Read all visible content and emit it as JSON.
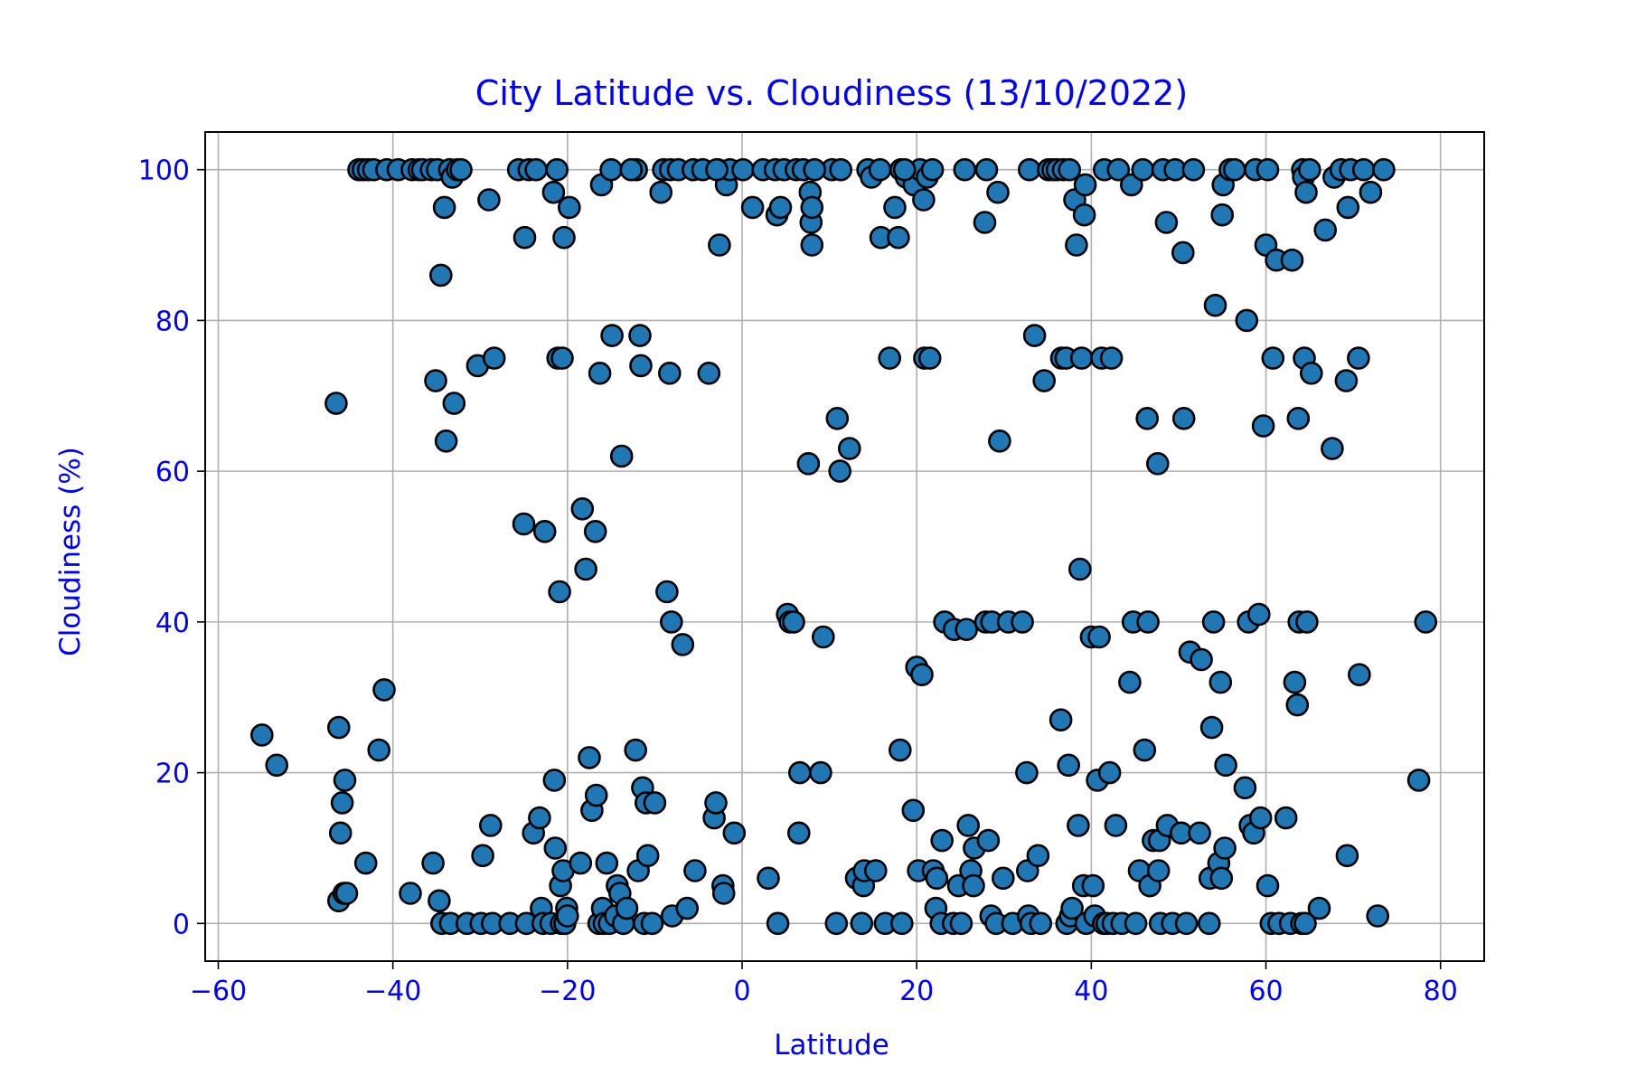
{
  "chart_data": {
    "type": "scatter",
    "title": "City Latitude vs. Cloudiness (13/10/2022)",
    "xlabel": "Latitude",
    "ylabel": "Cloudiness (%)",
    "xlim": [
      -61.5,
      85
    ],
    "ylim": [
      -5,
      105
    ],
    "xticks": [
      -60,
      -40,
      -20,
      0,
      20,
      40,
      60,
      80
    ],
    "yticks": [
      0,
      20,
      40,
      60,
      80,
      100
    ],
    "xtick_labels": [
      "−60",
      "−40",
      "−20",
      "0",
      "20",
      "40",
      "60",
      "80"
    ],
    "ytick_labels": [
      "0",
      "20",
      "40",
      "60",
      "80",
      "100"
    ],
    "grid": true,
    "legend": "none",
    "colors": {
      "text": "#0000ff",
      "marker_fill": "#1f77b4",
      "marker_edge": "#000000",
      "grid": "#b0b0b0",
      "axes": "#000000"
    },
    "points": [
      [
        -55,
        25
      ],
      [
        -53.3,
        21
      ],
      [
        -46.5,
        69
      ],
      [
        -46.2,
        26
      ],
      [
        -46,
        12
      ],
      [
        -46.2,
        3
      ],
      [
        -45.8,
        16
      ],
      [
        -45.5,
        19
      ],
      [
        -45.6,
        4
      ],
      [
        -45.3,
        4
      ],
      [
        -43.9,
        100
      ],
      [
        -43.4,
        100
      ],
      [
        -43.1,
        8
      ],
      [
        -42.8,
        100
      ],
      [
        -42.2,
        100
      ],
      [
        -41.6,
        23
      ],
      [
        -41,
        31
      ],
      [
        -40.7,
        100
      ],
      [
        -39.4,
        100
      ],
      [
        -38,
        4
      ],
      [
        -37.8,
        100
      ],
      [
        -37,
        100
      ],
      [
        -36.6,
        100
      ],
      [
        -35.6,
        100
      ],
      [
        -35.4,
        8
      ],
      [
        -35.1,
        72
      ],
      [
        -34.9,
        100
      ],
      [
        -34.7,
        3
      ],
      [
        -34.5,
        86
      ],
      [
        -34.4,
        0
      ],
      [
        -34.1,
        95
      ],
      [
        -33.9,
        64
      ],
      [
        -33.5,
        100
      ],
      [
        -33.4,
        0
      ],
      [
        -33.2,
        99
      ],
      [
        -33,
        69
      ],
      [
        -32.6,
        100
      ],
      [
        -32.2,
        100
      ],
      [
        -31.5,
        0
      ],
      [
        -30.3,
        74
      ],
      [
        -29.9,
        0
      ],
      [
        -29.7,
        9
      ],
      [
        -29,
        96
      ],
      [
        -28.8,
        13
      ],
      [
        -28.6,
        0
      ],
      [
        -28.4,
        75
      ],
      [
        -26.6,
        0
      ],
      [
        -25.6,
        100
      ],
      [
        -25,
        53
      ],
      [
        -24.9,
        91
      ],
      [
        -24.7,
        0
      ],
      [
        -24.4,
        100
      ],
      [
        -23.9,
        12
      ],
      [
        -23.6,
        100
      ],
      [
        -23.2,
        14
      ],
      [
        -23,
        2
      ],
      [
        -22.8,
        0
      ],
      [
        -22.6,
        52
      ],
      [
        -21.9,
        0
      ],
      [
        -21.6,
        97
      ],
      [
        -21.5,
        19
      ],
      [
        -21.4,
        10
      ],
      [
        -21.2,
        100
      ],
      [
        -21.1,
        75
      ],
      [
        -20.9,
        44
      ],
      [
        -20.8,
        5
      ],
      [
        -20.6,
        75
      ],
      [
        -20.7,
        0
      ],
      [
        -20.5,
        7
      ],
      [
        -20.4,
        91
      ],
      [
        -20.3,
        0
      ],
      [
        -20.1,
        2
      ],
      [
        -20,
        1
      ],
      [
        -19.8,
        95
      ],
      [
        -18.5,
        8
      ],
      [
        -18.3,
        55
      ],
      [
        -17.9,
        47
      ],
      [
        -17.5,
        22
      ],
      [
        -17.2,
        15
      ],
      [
        -16.8,
        52
      ],
      [
        -16.7,
        17
      ],
      [
        -16.4,
        0
      ],
      [
        -16.3,
        73
      ],
      [
        -16.1,
        98
      ],
      [
        -16,
        2
      ],
      [
        -15.8,
        0
      ],
      [
        -15.5,
        8
      ],
      [
        -15.2,
        0
      ],
      [
        -15,
        100
      ],
      [
        -14.9,
        78
      ],
      [
        -14.5,
        1
      ],
      [
        -14.3,
        5
      ],
      [
        -14,
        4
      ],
      [
        -13.8,
        62
      ],
      [
        -13.6,
        0
      ],
      [
        -13.2,
        2
      ],
      [
        -12.2,
        23
      ],
      [
        -12.1,
        100
      ],
      [
        -11.9,
        7
      ],
      [
        -11.7,
        78
      ],
      [
        -11.6,
        74
      ],
      [
        -11.4,
        18
      ],
      [
        -11.2,
        0
      ],
      [
        -11,
        16
      ],
      [
        -10.8,
        9
      ],
      [
        -10.3,
        0
      ],
      [
        -10,
        16
      ],
      [
        -9.3,
        97
      ],
      [
        -9,
        100
      ],
      [
        -8.6,
        44
      ],
      [
        -8.3,
        73
      ],
      [
        -8.2,
        100
      ],
      [
        -8.1,
        40
      ],
      [
        -8,
        1
      ],
      [
        -7.3,
        100
      ],
      [
        -6.8,
        37
      ],
      [
        -6.3,
        2
      ],
      [
        -5.6,
        100
      ],
      [
        -5.4,
        7
      ],
      [
        -4.5,
        100
      ],
      [
        -3.8,
        73
      ],
      [
        -3.2,
        14
      ],
      [
        -3,
        16
      ],
      [
        -2.8,
        100
      ],
      [
        -2.6,
        90
      ],
      [
        -2.2,
        5
      ],
      [
        -2.1,
        4
      ],
      [
        -1.8,
        98
      ],
      [
        -1.4,
        100
      ],
      [
        -0.9,
        12
      ],
      [
        0.1,
        100
      ],
      [
        1.2,
        95
      ],
      [
        2.4,
        100
      ],
      [
        3,
        6
      ],
      [
        3.8,
        100
      ],
      [
        4,
        94
      ],
      [
        4.1,
        0
      ],
      [
        4.4,
        95
      ],
      [
        4.8,
        100
      ],
      [
        5.2,
        41
      ],
      [
        5.5,
        40
      ],
      [
        5.9,
        40
      ],
      [
        6.2,
        100
      ],
      [
        6.6,
        20
      ],
      [
        6.5,
        12
      ],
      [
        7,
        100
      ],
      [
        7.6,
        61
      ],
      [
        7.8,
        97
      ],
      [
        7.9,
        93
      ],
      [
        8,
        95
      ],
      [
        8,
        90
      ],
      [
        9,
        20
      ],
      [
        9.3,
        38
      ],
      [
        10.3,
        100
      ],
      [
        10.8,
        0
      ],
      [
        10.9,
        67
      ],
      [
        11.3,
        100
      ],
      [
        11.2,
        60
      ],
      [
        12.3,
        63
      ],
      [
        13.1,
        6
      ],
      [
        13.7,
        0
      ],
      [
        13.9,
        5
      ],
      [
        14,
        7
      ],
      [
        14.4,
        100
      ],
      [
        14.8,
        99
      ],
      [
        15.3,
        7
      ],
      [
        15.8,
        100
      ],
      [
        15.9,
        91
      ],
      [
        16.4,
        0
      ],
      [
        16.9,
        75
      ],
      [
        17.5,
        95
      ],
      [
        17.9,
        91
      ],
      [
        18.1,
        23
      ],
      [
        18.2,
        100
      ],
      [
        18.3,
        0
      ],
      [
        18.8,
        99
      ],
      [
        19.6,
        15
      ],
      [
        19.7,
        98
      ],
      [
        20,
        34
      ],
      [
        20.2,
        7
      ],
      [
        20.4,
        100
      ],
      [
        20.6,
        33
      ],
      [
        20.8,
        96
      ],
      [
        20.9,
        75
      ],
      [
        21.2,
        99
      ],
      [
        21.5,
        75
      ],
      [
        21.8,
        100
      ],
      [
        21.9,
        7
      ],
      [
        22.3,
        6
      ],
      [
        22.2,
        2
      ],
      [
        22.8,
        0
      ],
      [
        22.9,
        11
      ],
      [
        23.2,
        40
      ],
      [
        24.2,
        0
      ],
      [
        24.3,
        39
      ],
      [
        24.8,
        5
      ],
      [
        25.1,
        0
      ],
      [
        25.5,
        100
      ],
      [
        25.7,
        39
      ],
      [
        25.9,
        13
      ],
      [
        26.2,
        7
      ],
      [
        26.5,
        5
      ],
      [
        26.6,
        10
      ],
      [
        27.8,
        93
      ],
      [
        27.9,
        40
      ],
      [
        28,
        100
      ],
      [
        28.2,
        11
      ],
      [
        28.5,
        1
      ],
      [
        28.6,
        40
      ],
      [
        29.1,
        0
      ],
      [
        29.3,
        97
      ],
      [
        29.5,
        64
      ],
      [
        29.9,
        6
      ],
      [
        30.5,
        40
      ],
      [
        31,
        0
      ],
      [
        32.1,
        40
      ],
      [
        32.6,
        20
      ],
      [
        32.7,
        7
      ],
      [
        32.8,
        1
      ],
      [
        32.9,
        100
      ],
      [
        33.1,
        0
      ],
      [
        33.5,
        78
      ],
      [
        33.9,
        9
      ],
      [
        34.2,
        0
      ],
      [
        34.6,
        72
      ],
      [
        35.1,
        100
      ],
      [
        35.6,
        100
      ],
      [
        36.1,
        100
      ],
      [
        36.5,
        27
      ],
      [
        36.6,
        75
      ],
      [
        36.8,
        100
      ],
      [
        37.1,
        75
      ],
      [
        37.2,
        0
      ],
      [
        37.4,
        21
      ],
      [
        37.5,
        100
      ],
      [
        37.6,
        1
      ],
      [
        37.8,
        2
      ],
      [
        38.1,
        96
      ],
      [
        38.3,
        90
      ],
      [
        38.5,
        13
      ],
      [
        38.7,
        47
      ],
      [
        38.9,
        75
      ],
      [
        39.1,
        5
      ],
      [
        39.2,
        94
      ],
      [
        39.3,
        98
      ],
      [
        39.4,
        0
      ],
      [
        40,
        38
      ],
      [
        40.2,
        5
      ],
      [
        40.4,
        1
      ],
      [
        40.7,
        19
      ],
      [
        40.9,
        38
      ],
      [
        41.2,
        75
      ],
      [
        41.4,
        0
      ],
      [
        41.5,
        100
      ],
      [
        41.8,
        0
      ],
      [
        42.1,
        20
      ],
      [
        42.3,
        75
      ],
      [
        42.5,
        0
      ],
      [
        42.8,
        13
      ],
      [
        43.1,
        100
      ],
      [
        43.5,
        0
      ],
      [
        44.4,
        32
      ],
      [
        44.6,
        98
      ],
      [
        44.8,
        40
      ],
      [
        45.1,
        0
      ],
      [
        45.5,
        7
      ],
      [
        45.9,
        100
      ],
      [
        46.1,
        23
      ],
      [
        46.4,
        67
      ],
      [
        46.5,
        40
      ],
      [
        46.7,
        5
      ],
      [
        47.1,
        11
      ],
      [
        47.6,
        61
      ],
      [
        47.7,
        7
      ],
      [
        47.8,
        11
      ],
      [
        47.9,
        0
      ],
      [
        48.2,
        100
      ],
      [
        48.6,
        93
      ],
      [
        48.7,
        13
      ],
      [
        49.3,
        0
      ],
      [
        49.6,
        100
      ],
      [
        50.3,
        12
      ],
      [
        50.5,
        89
      ],
      [
        50.6,
        67
      ],
      [
        50.9,
        0
      ],
      [
        51.3,
        36
      ],
      [
        51.7,
        100
      ],
      [
        52.4,
        12
      ],
      [
        52.6,
        35
      ],
      [
        53.5,
        0
      ],
      [
        53.6,
        6
      ],
      [
        53.8,
        26
      ],
      [
        54,
        40
      ],
      [
        54.2,
        82
      ],
      [
        54.6,
        8
      ],
      [
        54.8,
        32
      ],
      [
        54.9,
        6
      ],
      [
        55,
        94
      ],
      [
        55.1,
        98
      ],
      [
        55.3,
        10
      ],
      [
        55.4,
        21
      ],
      [
        55.9,
        100
      ],
      [
        56.4,
        100
      ],
      [
        57.6,
        18
      ],
      [
        57.8,
        80
      ],
      [
        58,
        40
      ],
      [
        58.2,
        13
      ],
      [
        58.6,
        12
      ],
      [
        58.8,
        100
      ],
      [
        59.2,
        41
      ],
      [
        59.4,
        14
      ],
      [
        59.7,
        66
      ],
      [
        60,
        90
      ],
      [
        60.2,
        100
      ],
      [
        60.2,
        5
      ],
      [
        60.6,
        0
      ],
      [
        60.8,
        75
      ],
      [
        61.2,
        88
      ],
      [
        61.5,
        0
      ],
      [
        62.3,
        14
      ],
      [
        62.8,
        0
      ],
      [
        63,
        88
      ],
      [
        63.3,
        32
      ],
      [
        63.6,
        29
      ],
      [
        63.7,
        67
      ],
      [
        63.8,
        40
      ],
      [
        64.1,
        0
      ],
      [
        64.2,
        100
      ],
      [
        64.3,
        99
      ],
      [
        64.4,
        75
      ],
      [
        64.5,
        0
      ],
      [
        64.6,
        97
      ],
      [
        64.7,
        40
      ],
      [
        65,
        100
      ],
      [
        65.2,
        73
      ],
      [
        66.1,
        2
      ],
      [
        66.8,
        92
      ],
      [
        67.6,
        63
      ],
      [
        67.8,
        99
      ],
      [
        68.6,
        100
      ],
      [
        69.3,
        9
      ],
      [
        69.4,
        95
      ],
      [
        69.7,
        100
      ],
      [
        70.6,
        75
      ],
      [
        70.7,
        33
      ],
      [
        71.2,
        100
      ],
      [
        72,
        97
      ],
      [
        72.8,
        1
      ],
      [
        73.5,
        100
      ],
      [
        77.5,
        19
      ],
      [
        78.3,
        40
      ],
      [
        69.2,
        72
      ],
      [
        -12.7,
        100
      ],
      [
        -2.9,
        100
      ],
      [
        8.3,
        100
      ],
      [
        18.6,
        100
      ]
    ]
  }
}
